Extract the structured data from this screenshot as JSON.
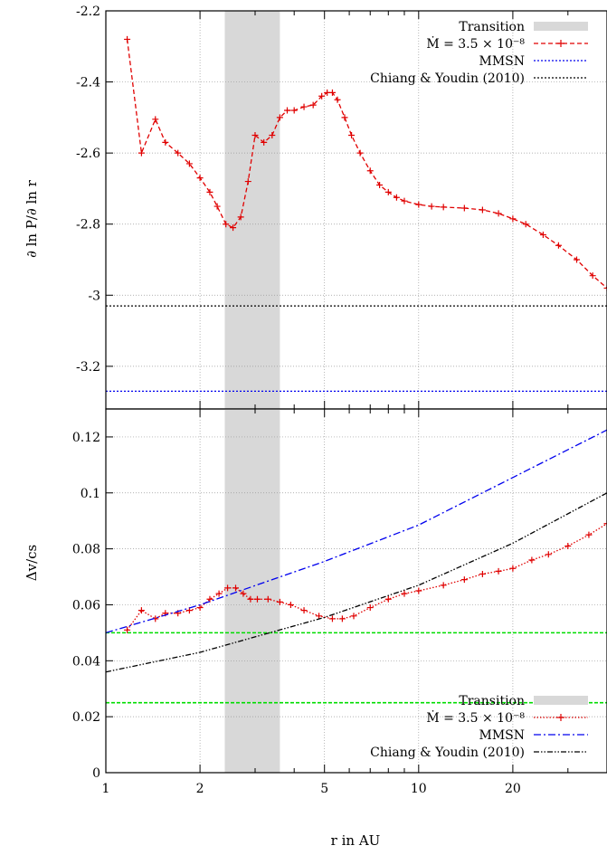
{
  "chart_data": [
    {
      "type": "line",
      "ylabel": "∂ ln P/∂ ln r",
      "xscale": "log",
      "xlim": [
        1,
        40
      ],
      "ylim": [
        -3.32,
        -2.2
      ],
      "yticks": [
        "-2.2",
        "-2.4",
        "-2.6",
        "-2.8",
        "-3",
        "-3.2"
      ],
      "yticks_values": [
        -2.2,
        -2.4,
        -2.6,
        -2.8,
        -3.0,
        -3.2
      ],
      "grid": true,
      "legend_position": "top-right",
      "transition_band": [
        2.4,
        3.6
      ],
      "series": [
        {
          "name": "Transition",
          "style": "shaded-band",
          "color": "#d8d8d8"
        },
        {
          "name": "Ṁ = 3.5 × 10⁻⁸",
          "style": "dashed-plus",
          "color": "#e00000",
          "x": [
            1.17,
            1.3,
            1.44,
            1.55,
            1.7,
            1.85,
            2.0,
            2.15,
            2.27,
            2.42,
            2.55,
            2.7,
            2.85,
            3.0,
            3.2,
            3.4,
            3.6,
            3.8,
            4.0,
            4.3,
            4.6,
            4.9,
            5.1,
            5.3,
            5.5,
            5.8,
            6.1,
            6.5,
            7.0,
            7.5,
            8.0,
            8.5,
            9.0,
            10.0,
            11.0,
            12.0,
            14.0,
            16.0,
            18.0,
            20.0,
            22.0,
            25.0,
            28.0,
            32.0,
            36.0,
            40.0
          ],
          "values": [
            -2.28,
            -2.6,
            -2.505,
            -2.57,
            -2.6,
            -2.63,
            -2.67,
            -2.71,
            -2.75,
            -2.8,
            -2.81,
            -2.78,
            -2.68,
            -2.55,
            -2.57,
            -2.55,
            -2.5,
            -2.48,
            -2.48,
            -2.47,
            -2.465,
            -2.44,
            -2.43,
            -2.43,
            -2.45,
            -2.5,
            -2.55,
            -2.6,
            -2.65,
            -2.69,
            -2.71,
            -2.725,
            -2.735,
            -2.745,
            -2.75,
            -2.752,
            -2.755,
            -2.76,
            -2.77,
            -2.785,
            -2.8,
            -2.83,
            -2.86,
            -2.9,
            -2.945,
            -2.98
          ]
        },
        {
          "name": "MMSN",
          "style": "dotted",
          "color": "#0000ee",
          "x": [
            1,
            40
          ],
          "values": [
            -3.27,
            -3.27
          ]
        },
        {
          "name": "Chiang & Youdin (2010)",
          "style": "dotted",
          "color": "#000000",
          "x": [
            1,
            40
          ],
          "values": [
            -3.03,
            -3.03
          ]
        }
      ]
    },
    {
      "type": "line",
      "xlabel": "r in AU",
      "ylabel": "Δv/cs",
      "xscale": "log",
      "xlim": [
        1,
        40
      ],
      "ylim": [
        0,
        0.13
      ],
      "xticks": [
        "1",
        "2",
        "5",
        "10",
        "20"
      ],
      "xticks_values": [
        1,
        2,
        5,
        10,
        20
      ],
      "yticks": [
        "0",
        "0.02",
        "0.04",
        "0.06",
        "0.08",
        "0.1",
        "0.12"
      ],
      "yticks_values": [
        0,
        0.02,
        0.04,
        0.06,
        0.08,
        0.1,
        0.12
      ],
      "grid": true,
      "legend_position": "bottom-right",
      "transition_band": [
        2.4,
        3.6
      ],
      "reference_lines": [
        {
          "y": 0.05,
          "color": "#00dd00"
        },
        {
          "y": 0.025,
          "color": "#00dd00"
        }
      ],
      "series": [
        {
          "name": "Transition",
          "style": "shaded-band",
          "color": "#d8d8d8"
        },
        {
          "name": "Ṁ = 3.5 × 10⁻⁸",
          "style": "dotted-plus",
          "color": "#e00000",
          "x": [
            1.17,
            1.3,
            1.44,
            1.55,
            1.7,
            1.85,
            2.0,
            2.15,
            2.3,
            2.45,
            2.6,
            2.75,
            2.9,
            3.05,
            3.3,
            3.6,
            3.9,
            4.3,
            4.8,
            5.3,
            5.7,
            6.2,
            7.0,
            8.0,
            9.0,
            10.0,
            12.0,
            14.0,
            16.0,
            18.0,
            20.0,
            23.0,
            26.0,
            30.0,
            35.0,
            40.0
          ],
          "values": [
            0.051,
            0.058,
            0.055,
            0.057,
            0.057,
            0.058,
            0.059,
            0.062,
            0.064,
            0.066,
            0.066,
            0.064,
            0.062,
            0.062,
            0.062,
            0.061,
            0.06,
            0.058,
            0.056,
            0.055,
            0.055,
            0.056,
            0.059,
            0.062,
            0.064,
            0.065,
            0.067,
            0.069,
            0.071,
            0.072,
            0.073,
            0.076,
            0.078,
            0.081,
            0.085,
            0.089
          ]
        },
        {
          "name": "MMSN",
          "style": "dash-dot",
          "color": "#0000ee",
          "x": [
            1,
            2,
            5,
            10,
            20,
            40
          ],
          "values": [
            0.05,
            0.06,
            0.0755,
            0.0885,
            0.1055,
            0.1225
          ]
        },
        {
          "name": "Chiang & Youdin (2010)",
          "style": "dash-dot-dot",
          "color": "#000000",
          "x": [
            1,
            2,
            5,
            10,
            20,
            40
          ],
          "values": [
            0.036,
            0.043,
            0.0555,
            0.067,
            0.082,
            0.1
          ]
        }
      ]
    }
  ]
}
